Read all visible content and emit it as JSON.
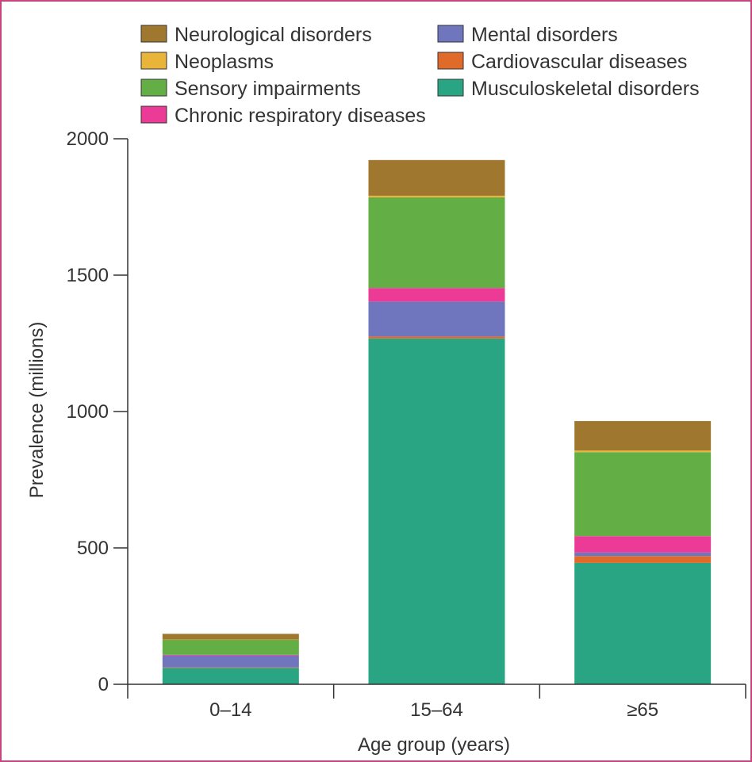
{
  "chart_data": {
    "type": "bar",
    "stacked": true,
    "xlabel": "Age group (years)",
    "ylabel": "Prevalence (millions)",
    "ylim": [
      0,
      2000
    ],
    "yticks": [
      0,
      500,
      1000,
      1500,
      2000
    ],
    "categories": [
      "0–14",
      "15–64",
      "≥65"
    ],
    "legend_position": "top",
    "series": [
      {
        "name": "Musculoskeletal disorders",
        "color": "#2aa584",
        "values": [
          60,
          1268,
          445
        ]
      },
      {
        "name": "Cardiovascular diseases",
        "color": "#e06a2a",
        "values": [
          2,
          7,
          25
        ]
      },
      {
        "name": "Mental disorders",
        "color": "#6f76bd",
        "values": [
          43,
          128,
          13
        ]
      },
      {
        "name": "Chronic respiratory diseases",
        "color": "#eb3b96",
        "values": [
          3,
          50,
          60
        ]
      },
      {
        "name": "Sensory impairments",
        "color": "#63ae45",
        "values": [
          55,
          332,
          308
        ]
      },
      {
        "name": "Neoplasms",
        "color": "#e8b43a",
        "values": [
          1,
          6,
          6
        ]
      },
      {
        "name": "Neurological disorders",
        "color": "#a0772e",
        "values": [
          21,
          131,
          108
        ]
      }
    ],
    "legend_order": [
      "Neurological disorders",
      "Mental disorders",
      "Neoplasms",
      "Cardiovascular diseases",
      "Sensory impairments",
      "Musculoskeletal disorders",
      "Chronic respiratory diseases"
    ]
  }
}
